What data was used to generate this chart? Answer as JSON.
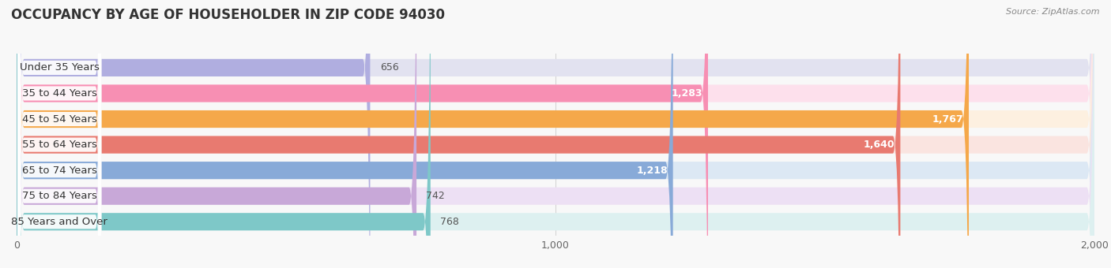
{
  "title": "OCCUPANCY BY AGE OF HOUSEHOLDER IN ZIP CODE 94030",
  "source": "Source: ZipAtlas.com",
  "categories": [
    "Under 35 Years",
    "35 to 44 Years",
    "45 to 54 Years",
    "55 to 64 Years",
    "65 to 74 Years",
    "75 to 84 Years",
    "85 Years and Over"
  ],
  "values": [
    656,
    1283,
    1767,
    1640,
    1218,
    742,
    768
  ],
  "bar_colors": [
    "#b0aee0",
    "#f78fb3",
    "#f5a84a",
    "#e87a70",
    "#88aad8",
    "#c8a8d8",
    "#7ec8c8"
  ],
  "bar_bg_colors": [
    "#e2e2f0",
    "#fde0ec",
    "#fdf0e0",
    "#fae4e0",
    "#dce8f4",
    "#ede0f4",
    "#ddf0f0"
  ],
  "xlim": [
    0,
    2000
  ],
  "xticks": [
    0,
    1000,
    2000
  ],
  "xticklabels": [
    "0",
    "1,000",
    "2,000"
  ],
  "title_fontsize": 12,
  "label_fontsize": 9.5,
  "value_fontsize": 9,
  "bar_height": 0.68,
  "value_label_inside": [
    false,
    true,
    true,
    true,
    true,
    false,
    false
  ]
}
